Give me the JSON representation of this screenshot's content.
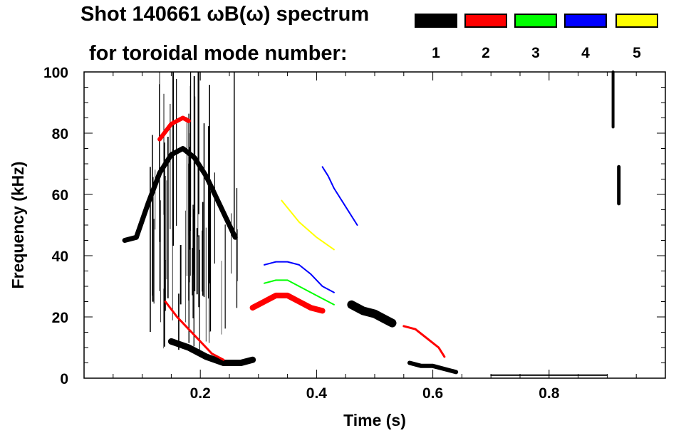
{
  "chart_data": {
    "type": "spectrogram",
    "title_line1": "Shot 140661 ωB(ω) spectrum",
    "title_line2": "for toroidal mode number:",
    "xlabel": "Time (s)",
    "ylabel": "Frequency (kHz)",
    "xlim": [
      0.0,
      1.0
    ],
    "ylim": [
      0,
      100
    ],
    "xticks": [
      {
        "value": 0.2,
        "label": "0.2"
      },
      {
        "value": 0.4,
        "label": "0.4"
      },
      {
        "value": 0.6,
        "label": "0.6"
      },
      {
        "value": 0.8,
        "label": "0.8"
      }
    ],
    "yticks": [
      {
        "value": 0,
        "label": "0"
      },
      {
        "value": 20,
        "label": "20"
      },
      {
        "value": 40,
        "label": "40"
      },
      {
        "value": 60,
        "label": "60"
      },
      {
        "value": 80,
        "label": "80"
      },
      {
        "value": 100,
        "label": "100"
      }
    ],
    "legend": [
      {
        "mode": "1",
        "color": "#000000"
      },
      {
        "mode": "2",
        "color": "#ff0000"
      },
      {
        "mode": "3",
        "color": "#00ff00"
      },
      {
        "mode": "4",
        "color": "#0000ff"
      },
      {
        "mode": "5",
        "color": "#ffff00"
      }
    ],
    "features": [
      {
        "name": "n1-early-chirp",
        "mode": 1,
        "points": [
          [
            0.07,
            45
          ],
          [
            0.09,
            46
          ],
          [
            0.11,
            57
          ],
          [
            0.13,
            67
          ],
          [
            0.15,
            73
          ],
          [
            0.17,
            75
          ],
          [
            0.19,
            72
          ],
          [
            0.21,
            66
          ],
          [
            0.23,
            58
          ],
          [
            0.25,
            50
          ],
          [
            0.26,
            46
          ]
        ],
        "thickness": 7
      },
      {
        "name": "n1-early-broadband",
        "mode": 1,
        "t_range": [
          0.11,
          0.27
        ],
        "f_range": [
          8,
          100
        ],
        "kind": "vertical-streaks"
      },
      {
        "name": "n1-low-freq-burst",
        "mode": 1,
        "points": [
          [
            0.15,
            12
          ],
          [
            0.18,
            10
          ],
          [
            0.21,
            7
          ],
          [
            0.24,
            5
          ],
          [
            0.27,
            5
          ],
          [
            0.29,
            6
          ]
        ],
        "thickness": 9
      },
      {
        "name": "n2-early-high",
        "mode": 2,
        "points": [
          [
            0.13,
            78
          ],
          [
            0.15,
            83
          ],
          [
            0.17,
            85
          ],
          [
            0.18,
            84
          ]
        ],
        "thickness": 6
      },
      {
        "name": "n2-descending",
        "mode": 2,
        "points": [
          [
            0.14,
            25
          ],
          [
            0.16,
            20
          ],
          [
            0.18,
            16
          ],
          [
            0.2,
            12
          ],
          [
            0.22,
            8
          ],
          [
            0.24,
            6
          ]
        ],
        "thickness": 3
      },
      {
        "name": "n2-central-mode",
        "mode": 2,
        "points": [
          [
            0.29,
            23
          ],
          [
            0.31,
            25
          ],
          [
            0.33,
            27
          ],
          [
            0.35,
            27
          ],
          [
            0.37,
            25
          ],
          [
            0.39,
            23
          ],
          [
            0.41,
            22
          ]
        ],
        "thickness": 8
      },
      {
        "name": "n3-central-mode",
        "mode": 3,
        "points": [
          [
            0.31,
            31
          ],
          [
            0.33,
            32
          ],
          [
            0.35,
            32
          ],
          [
            0.37,
            30
          ],
          [
            0.39,
            28
          ],
          [
            0.41,
            26
          ],
          [
            0.43,
            24
          ]
        ],
        "thickness": 2
      },
      {
        "name": "n4-central-mode",
        "mode": 4,
        "points": [
          [
            0.31,
            37
          ],
          [
            0.33,
            38
          ],
          [
            0.35,
            38
          ],
          [
            0.37,
            37
          ],
          [
            0.39,
            34
          ],
          [
            0.41,
            30
          ],
          [
            0.43,
            28
          ]
        ],
        "thickness": 2
      },
      {
        "name": "n4-descending-high",
        "mode": 4,
        "points": [
          [
            0.41,
            69
          ],
          [
            0.42,
            66
          ],
          [
            0.43,
            62
          ],
          [
            0.45,
            56
          ],
          [
            0.47,
            50
          ]
        ],
        "thickness": 2
      },
      {
        "name": "n5-descending",
        "mode": 5,
        "points": [
          [
            0.34,
            58
          ],
          [
            0.37,
            51
          ],
          [
            0.4,
            46
          ],
          [
            0.43,
            42
          ]
        ],
        "thickness": 2
      },
      {
        "name": "n1-late-burst",
        "mode": 1,
        "points": [
          [
            0.46,
            24
          ],
          [
            0.48,
            22
          ],
          [
            0.5,
            21
          ],
          [
            0.52,
            19
          ],
          [
            0.53,
            18
          ]
        ],
        "thickness": 12
      },
      {
        "name": "n2-late",
        "mode": 2,
        "points": [
          [
            0.55,
            17
          ],
          [
            0.57,
            16
          ],
          [
            0.59,
            13
          ],
          [
            0.61,
            10
          ],
          [
            0.62,
            7
          ]
        ],
        "thickness": 3
      },
      {
        "name": "n1-late-low",
        "mode": 1,
        "points": [
          [
            0.56,
            5
          ],
          [
            0.58,
            4
          ],
          [
            0.6,
            4
          ],
          [
            0.62,
            3
          ],
          [
            0.64,
            2
          ]
        ],
        "thickness": 6
      },
      {
        "name": "n1-end-high",
        "mode": 1,
        "points": [
          [
            0.91,
            100
          ],
          [
            0.91,
            90
          ],
          [
            0.91,
            82
          ]
        ],
        "thickness": 4
      },
      {
        "name": "n1-end-mid",
        "mode": 1,
        "points": [
          [
            0.92,
            69
          ],
          [
            0.92,
            60
          ],
          [
            0.92,
            57
          ]
        ],
        "thickness": 5
      },
      {
        "name": "n1-baseline",
        "mode": 1,
        "points": [
          [
            0.7,
            1
          ],
          [
            0.75,
            1
          ],
          [
            0.8,
            1
          ],
          [
            0.85,
            1
          ],
          [
            0.9,
            1
          ]
        ],
        "thickness": 2
      }
    ]
  }
}
